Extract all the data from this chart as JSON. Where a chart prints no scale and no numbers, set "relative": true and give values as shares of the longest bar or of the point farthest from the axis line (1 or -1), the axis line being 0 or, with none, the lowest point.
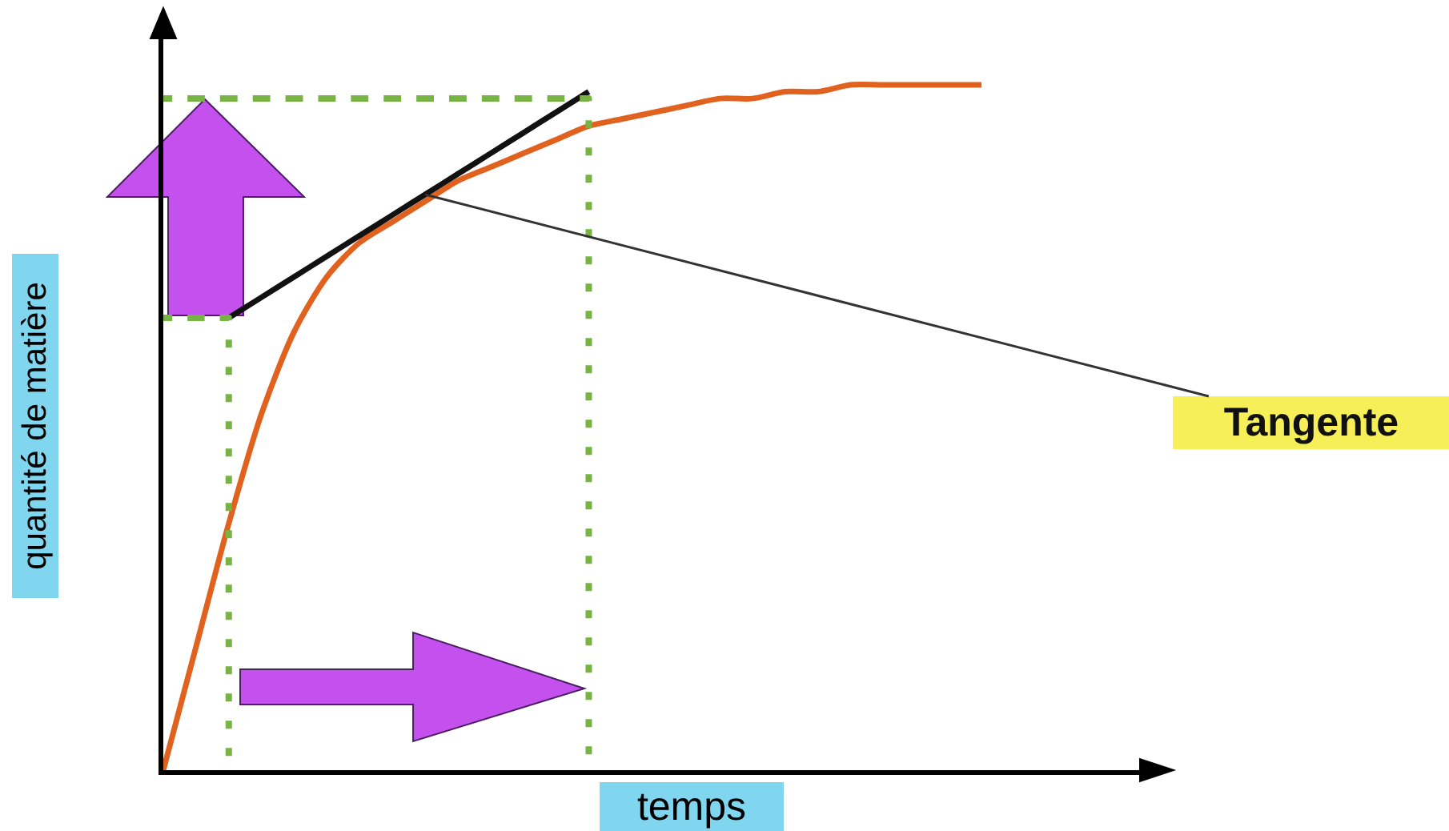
{
  "chart_data": {
    "type": "line",
    "relative": true,
    "xlabel": "temps",
    "ylabel": "quantité de matière",
    "grid": false,
    "legend": false,
    "categories": [
      null,
      null,
      null,
      null,
      null,
      null,
      null,
      null,
      null,
      null,
      null,
      null,
      null,
      null,
      null,
      null,
      null,
      null,
      null,
      null,
      null,
      null,
      null,
      null,
      null,
      null
    ],
    "series": [
      {
        "color": "#e0621e",
        "values": [
          0,
          0.18,
          0.36,
          0.52,
          0.64,
          0.72,
          0.77,
          0.8,
          0.83,
          0.86,
          0.88,
          0.9,
          0.92,
          0.94,
          0.95,
          0.96,
          0.97,
          0.98,
          0.98,
          0.99,
          0.99,
          1.0,
          1.0,
          1.0,
          1.0,
          1.0
        ]
      },
      {
        "name": "Tangente",
        "color": "#111111",
        "values": [
          null,
          null,
          0.66,
          0.69,
          0.72,
          0.75,
          0.78,
          0.81,
          0.84,
          0.87,
          0.9,
          0.93,
          0.96,
          0.99,
          null,
          null,
          null,
          null,
          null,
          null,
          null,
          null,
          null,
          null,
          null,
          null
        ]
      },
      {
        "color": "#78b444",
        "line_style": "dashed",
        "values": [
          0.98,
          0.98,
          0.98,
          0.98,
          0.98,
          0.98,
          0.98,
          0.98,
          0.98,
          0.98,
          0.98,
          0.98,
          0.98,
          0.98,
          null,
          null,
          null,
          null,
          null,
          null,
          null,
          null,
          null,
          null,
          null,
          null
        ]
      },
      {
        "color": "#78b444",
        "line_style": "dashed",
        "values": [
          0.66,
          0.66,
          0.66,
          null,
          null,
          null,
          null,
          null,
          null,
          null,
          null,
          null,
          null,
          null,
          null,
          null,
          null,
          null,
          null,
          null,
          null,
          null,
          null,
          null,
          null,
          null
        ]
      },
      {
        "type": "step",
        "color": "#78b444",
        "line_style": "dotted",
        "values": [
          null,
          0.66,
          0,
          null,
          null,
          null,
          null,
          null,
          null,
          null,
          null,
          null,
          null,
          null,
          null,
          null,
          null,
          null,
          null,
          null,
          null,
          null,
          null,
          null,
          null,
          null
        ]
      },
      {
        "type": "step",
        "color": "#78b444",
        "line_style": "dotted",
        "values": [
          null,
          null,
          null,
          null,
          null,
          null,
          null,
          null,
          null,
          null,
          null,
          null,
          0.98,
          0,
          null,
          null,
          null,
          null,
          null,
          null,
          null,
          null,
          null,
          null,
          null,
          null
        ]
      }
    ]
  }
}
